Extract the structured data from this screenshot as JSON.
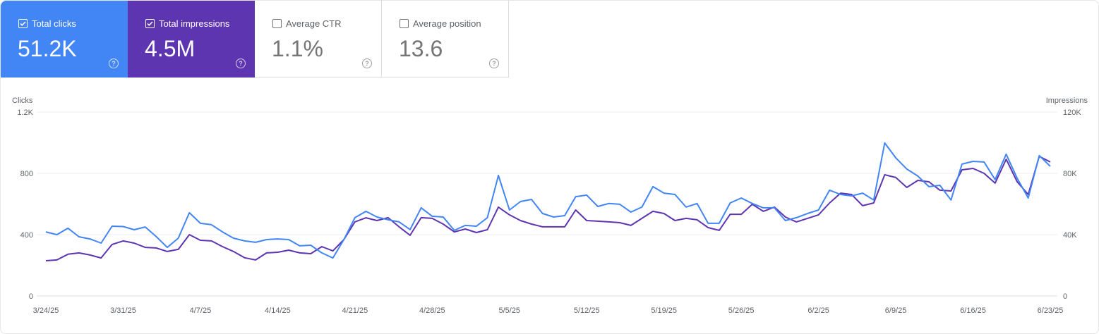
{
  "metrics": [
    {
      "label": "Total clicks",
      "value": "51.2K",
      "checked": true,
      "color": "#4285f4"
    },
    {
      "label": "Total impressions",
      "value": "4.5M",
      "checked": true,
      "color": "#5e35b1"
    },
    {
      "label": "Average CTR",
      "value": "1.1%",
      "checked": false
    },
    {
      "label": "Average position",
      "value": "13.6",
      "checked": false
    }
  ],
  "help_icon": "?",
  "chart_data": {
    "type": "line",
    "left_axis": {
      "label": "Clicks",
      "ticks": [
        "0",
        "400",
        "800",
        "1.2K"
      ],
      "range": [
        0,
        1200
      ]
    },
    "right_axis": {
      "label": "Impressions",
      "ticks": [
        "0",
        "40K",
        "80K",
        "120K"
      ],
      "range": [
        0,
        120000
      ]
    },
    "x_tick_labels": [
      "3/24/25",
      "3/31/25",
      "4/7/25",
      "4/14/25",
      "4/21/25",
      "4/28/25",
      "5/5/25",
      "5/12/25",
      "5/19/25",
      "5/26/25",
      "6/2/25",
      "6/9/25",
      "6/16/25",
      "6/23/25"
    ],
    "grid": true,
    "x": [
      "3/24/25",
      "3/25/25",
      "3/26/25",
      "3/27/25",
      "3/28/25",
      "3/29/25",
      "3/30/25",
      "3/31/25",
      "4/1/25",
      "4/2/25",
      "4/3/25",
      "4/4/25",
      "4/5/25",
      "4/6/25",
      "4/7/25",
      "4/8/25",
      "4/9/25",
      "4/10/25",
      "4/11/25",
      "4/12/25",
      "4/13/25",
      "4/14/25",
      "4/15/25",
      "4/16/25",
      "4/17/25",
      "4/18/25",
      "4/19/25",
      "4/20/25",
      "4/21/25",
      "4/22/25",
      "4/23/25",
      "4/24/25",
      "4/25/25",
      "4/26/25",
      "4/27/25",
      "4/28/25",
      "4/29/25",
      "4/30/25",
      "5/1/25",
      "5/2/25",
      "5/3/25",
      "5/4/25",
      "5/5/25",
      "5/6/25",
      "5/7/25",
      "5/8/25",
      "5/9/25",
      "5/10/25",
      "5/11/25",
      "5/12/25",
      "5/13/25",
      "5/14/25",
      "5/15/25",
      "5/16/25",
      "5/17/25",
      "5/18/25",
      "5/19/25",
      "5/20/25",
      "5/21/25",
      "5/22/25",
      "5/23/25",
      "5/24/25",
      "5/25/25",
      "5/26/25",
      "5/27/25",
      "5/28/25",
      "5/29/25",
      "5/30/25",
      "5/31/25",
      "6/1/25",
      "6/2/25",
      "6/3/25",
      "6/4/25",
      "6/5/25",
      "6/6/25",
      "6/7/25",
      "6/8/25",
      "6/9/25",
      "6/10/25",
      "6/11/25",
      "6/12/25",
      "6/13/25",
      "6/14/25",
      "6/15/25",
      "6/16/25",
      "6/17/25",
      "6/18/25",
      "6/19/25",
      "6/20/25",
      "6/21/25",
      "6/22/25",
      "6/23/25"
    ],
    "series": [
      {
        "name": "Clicks",
        "axis": "left",
        "color": "#4285f4",
        "values": [
          418,
          400,
          442,
          386,
          372,
          345,
          455,
          453,
          432,
          450,
          387,
          317,
          377,
          543,
          474,
          465,
          418,
          377,
          359,
          350,
          368,
          372,
          368,
          327,
          331,
          281,
          248,
          368,
          511,
          552,
          515,
          497,
          483,
          433,
          575,
          520,
          515,
          428,
          460,
          455,
          511,
          786,
          561,
          616,
          630,
          538,
          515,
          524,
          648,
          658,
          584,
          603,
          598,
          547,
          580,
          713,
          671,
          662,
          580,
          603,
          474,
          474,
          607,
          639,
          603,
          575,
          575,
          492,
          511,
          538,
          561,
          690,
          662,
          653,
          671,
          626,
          998,
          901,
          828,
          782,
          713,
          722,
          626,
          860,
          878,
          874,
          759,
          925,
          768,
          639,
          916,
          846
        ]
      },
      {
        "name": "Impressions",
        "axis": "right",
        "color": "#5e35b1",
        "values": [
          23000,
          23500,
          27200,
          28100,
          26700,
          24800,
          33600,
          35900,
          34500,
          31700,
          31300,
          29000,
          30400,
          40000,
          36300,
          35900,
          32200,
          29000,
          24900,
          23500,
          28100,
          28500,
          29900,
          28100,
          27600,
          32200,
          29400,
          36800,
          48300,
          51000,
          49200,
          51100,
          45100,
          39600,
          51100,
          50600,
          46900,
          41800,
          43700,
          41400,
          43200,
          58000,
          52900,
          49200,
          46900,
          45100,
          45100,
          45100,
          56100,
          49200,
          48800,
          48300,
          47800,
          46000,
          50600,
          55200,
          53800,
          49200,
          50600,
          49700,
          44600,
          42800,
          53300,
          53300,
          59800,
          55200,
          58000,
          51500,
          48300,
          50600,
          52900,
          60700,
          67100,
          66200,
          58900,
          60700,
          79100,
          77300,
          70800,
          75400,
          74500,
          69000,
          68500,
          82300,
          83200,
          80000,
          73600,
          89200,
          74500,
          66200,
          91100,
          87400
        ]
      }
    ]
  }
}
